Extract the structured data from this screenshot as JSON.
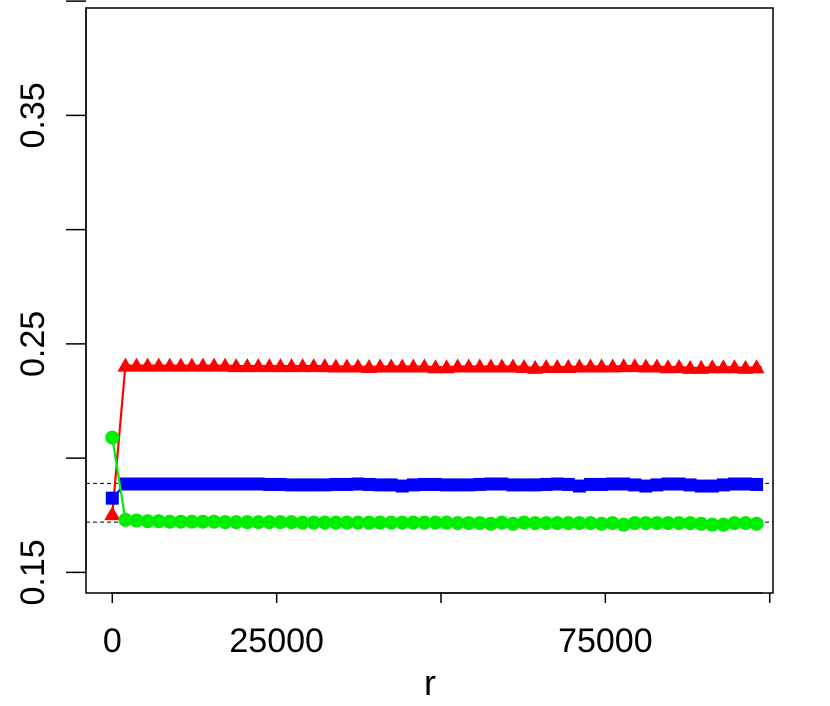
{
  "chart_data": {
    "type": "line",
    "title": "",
    "xlabel": "r",
    "ylabel": "",
    "xlim": [
      -4000,
      100500
    ],
    "ylim": [
      0.141,
      0.397
    ],
    "x_ticks": [
      0,
      25000,
      50000,
      75000,
      100000
    ],
    "x_tick_labels": [
      "0",
      "25000",
      "",
      "75000",
      ""
    ],
    "y_ticks": [
      0.15,
      0.2,
      0.25,
      0.3,
      0.35,
      0.4
    ],
    "y_tick_labels": [
      "0.15",
      "",
      "0.25",
      "",
      "0.35",
      ""
    ],
    "reference_lines": [
      0.189,
      0.172
    ],
    "grid": false,
    "legend": "none",
    "series": [
      {
        "marker": "triangle",
        "color": "#ff0000",
        "x": [
          0,
          2000,
          3684,
          5368,
          7053,
          8737,
          10421,
          12105,
          13789,
          15474,
          17158,
          18842,
          20526,
          22211,
          23895,
          25579,
          27263,
          28947,
          30632,
          32316,
          34000,
          35684,
          37368,
          39053,
          40737,
          42421,
          44105,
          45789,
          47474,
          49158,
          50842,
          52526,
          54211,
          55895,
          57579,
          59263,
          60947,
          62632,
          64316,
          66000,
          67684,
          69368,
          71053,
          72737,
          74421,
          76105,
          77789,
          79474,
          81158,
          82842,
          84526,
          86211,
          87895,
          89579,
          91263,
          92947,
          94632,
          96316,
          98000
        ],
        "values": [
          0.1755,
          0.2405,
          0.2405,
          0.2405,
          0.2405,
          0.2405,
          0.2405,
          0.2405,
          0.2405,
          0.2405,
          0.2405,
          0.2403,
          0.2403,
          0.2403,
          0.2403,
          0.2403,
          0.2403,
          0.2403,
          0.2403,
          0.2403,
          0.2401,
          0.2401,
          0.2401,
          0.2399,
          0.2401,
          0.2401,
          0.2401,
          0.2401,
          0.2401,
          0.2398,
          0.2398,
          0.2401,
          0.2401,
          0.2401,
          0.2401,
          0.2401,
          0.2401,
          0.2399,
          0.2395,
          0.2399,
          0.2399,
          0.2399,
          0.2401,
          0.2401,
          0.2401,
          0.2401,
          0.2403,
          0.2403,
          0.2401,
          0.2401,
          0.2398,
          0.2399,
          0.2395,
          0.2395,
          0.2398,
          0.2398,
          0.2398,
          0.2395,
          0.2398
        ]
      },
      {
        "marker": "square",
        "color": "#0000ff",
        "x": [
          0,
          2000,
          3684,
          5368,
          7053,
          8737,
          10421,
          12105,
          13789,
          15474,
          17158,
          18842,
          20526,
          22211,
          23895,
          25579,
          27263,
          28947,
          30632,
          32316,
          34000,
          35684,
          37368,
          39053,
          40737,
          42421,
          44105,
          45789,
          47474,
          49158,
          50842,
          52526,
          54211,
          55895,
          57579,
          59263,
          60947,
          62632,
          64316,
          66000,
          67684,
          69368,
          71053,
          72737,
          74421,
          76105,
          77789,
          79474,
          81158,
          82842,
          84526,
          86211,
          87895,
          89579,
          91263,
          92947,
          94632,
          96316,
          98000
        ],
        "values": [
          0.1825,
          0.1887,
          0.1887,
          0.1887,
          0.1887,
          0.1887,
          0.1887,
          0.1887,
          0.1887,
          0.1887,
          0.1887,
          0.1887,
          0.1887,
          0.1887,
          0.1885,
          0.1885,
          0.1883,
          0.1883,
          0.1883,
          0.1883,
          0.1885,
          0.1885,
          0.1887,
          0.1885,
          0.1883,
          0.1883,
          0.1878,
          0.1883,
          0.1885,
          0.1885,
          0.1883,
          0.1883,
          0.1883,
          0.1885,
          0.1887,
          0.1887,
          0.1883,
          0.1883,
          0.1883,
          0.1885,
          0.1887,
          0.1885,
          0.1878,
          0.1885,
          0.1885,
          0.1887,
          0.1887,
          0.1883,
          0.1878,
          0.1883,
          0.1887,
          0.1887,
          0.1883,
          0.1878,
          0.1878,
          0.1883,
          0.1887,
          0.1887,
          0.1885
        ]
      },
      {
        "marker": "circle",
        "color": "#00ee00",
        "x": [
          0,
          2000,
          3684,
          5368,
          7053,
          8737,
          10421,
          12105,
          13789,
          15474,
          17158,
          18842,
          20526,
          22211,
          23895,
          25579,
          27263,
          28947,
          30632,
          32316,
          34000,
          35684,
          37368,
          39053,
          40737,
          42421,
          44105,
          45789,
          47474,
          49158,
          50842,
          52526,
          54211,
          55895,
          57579,
          59263,
          60947,
          62632,
          64316,
          66000,
          67684,
          69368,
          71053,
          72737,
          74421,
          76105,
          77789,
          79474,
          81158,
          82842,
          84526,
          86211,
          87895,
          89579,
          91263,
          92947,
          94632,
          96316,
          98000
        ],
        "values": [
          0.209,
          0.173,
          0.1727,
          0.1724,
          0.1724,
          0.1722,
          0.1722,
          0.1722,
          0.1722,
          0.1722,
          0.172,
          0.172,
          0.172,
          0.172,
          0.172,
          0.172,
          0.172,
          0.1718,
          0.1718,
          0.1718,
          0.1718,
          0.1718,
          0.1718,
          0.1718,
          0.1718,
          0.1718,
          0.1718,
          0.1718,
          0.1718,
          0.1718,
          0.1718,
          0.1716,
          0.1716,
          0.1716,
          0.1713,
          0.1718,
          0.1713,
          0.1718,
          0.1716,
          0.1716,
          0.1716,
          0.1716,
          0.1716,
          0.1716,
          0.1713,
          0.1716,
          0.1709,
          0.1716,
          0.1716,
          0.1716,
          0.1716,
          0.1716,
          0.1716,
          0.1713,
          0.1709,
          0.1709,
          0.1716,
          0.1716,
          0.1713
        ]
      }
    ]
  }
}
